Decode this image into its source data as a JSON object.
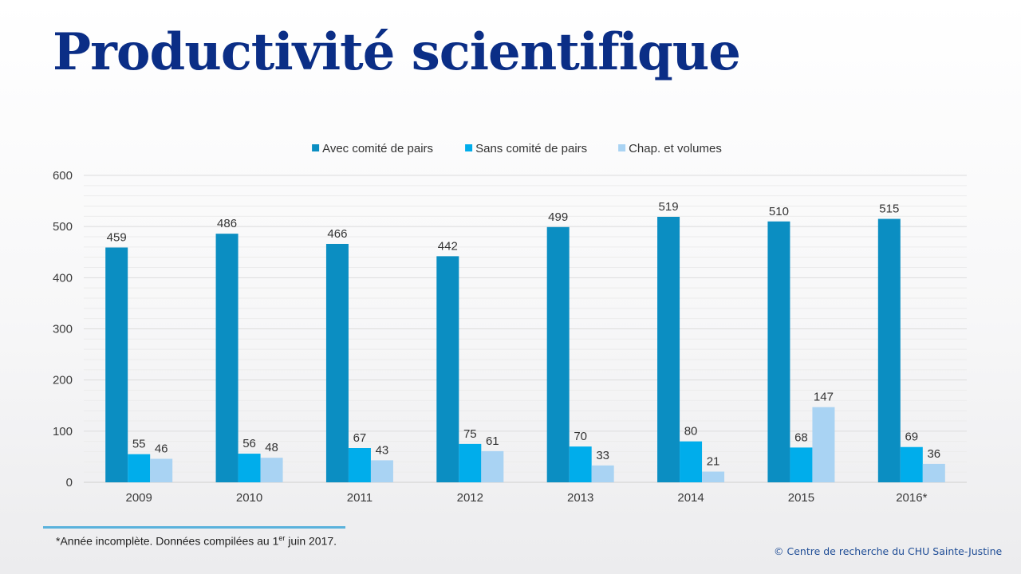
{
  "page": {
    "title": "Productivité scientifique",
    "footnote": {
      "before": "*Année incomplète. Données compilées au 1",
      "sup": "er",
      "after": " juin 2017."
    },
    "copyright": "© Centre de recherche du CHU Sainte-Justine"
  },
  "chart_data": {
    "type": "bar",
    "title": "",
    "xlabel": "",
    "ylabel": "",
    "ylim": [
      0,
      600
    ],
    "yticks": [
      0,
      100,
      200,
      300,
      400,
      500,
      600
    ],
    "grid": true,
    "legend_position": "top",
    "categories": [
      "2009",
      "2010",
      "2011",
      "2012",
      "2013",
      "2014",
      "2015",
      "2016*"
    ],
    "series": [
      {
        "name": "Avec comité de pairs",
        "color": "#0b8ec2",
        "values": [
          459,
          486,
          466,
          442,
          499,
          519,
          510,
          515
        ]
      },
      {
        "name": "Sans comité de pairs",
        "color": "#00adeb",
        "values": [
          55,
          56,
          67,
          75,
          70,
          80,
          68,
          69
        ]
      },
      {
        "name": "Chap. et volumes",
        "color": "#a9d3f3",
        "values": [
          46,
          48,
          43,
          61,
          33,
          21,
          147,
          36
        ]
      }
    ]
  }
}
